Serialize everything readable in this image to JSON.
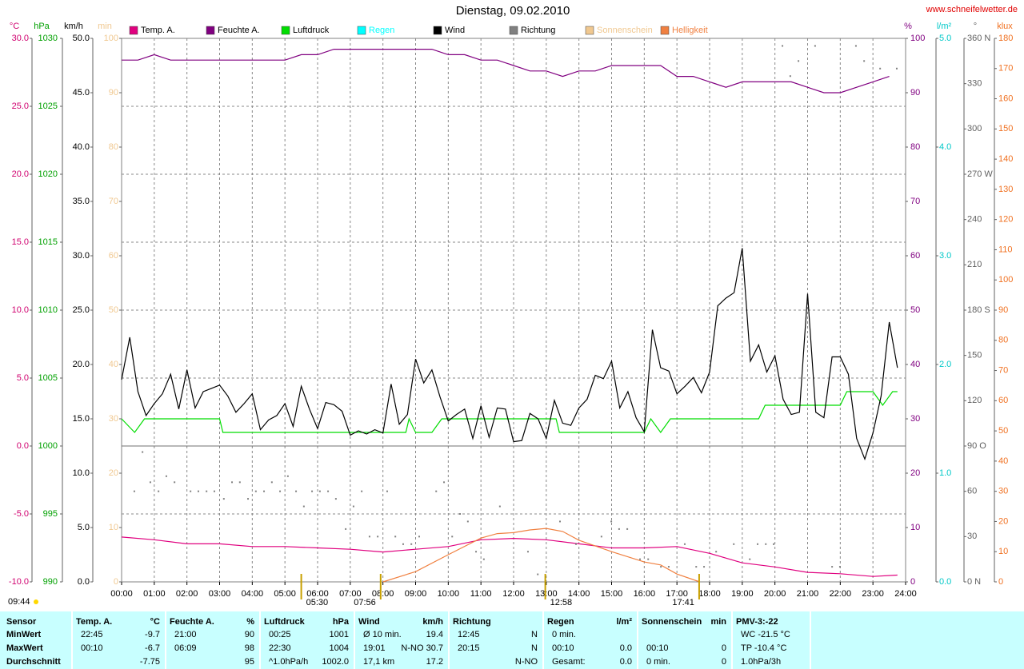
{
  "chart_data": {
    "type": "line",
    "title": "Dienstag, 09.02.2010",
    "source": "www.schneifelwetter.de",
    "xlim": [
      0,
      24
    ],
    "xticks": [
      {
        "value": 0,
        "label": "00:00"
      },
      {
        "value": 1,
        "label": "01:00"
      },
      {
        "value": 2,
        "label": "02:00"
      },
      {
        "value": 3,
        "label": "03:00"
      },
      {
        "value": 4,
        "label": "04:00"
      },
      {
        "value": 5,
        "label": "05:00"
      },
      {
        "value": 6,
        "label": "06:00"
      },
      {
        "value": 7,
        "label": "07:00"
      },
      {
        "value": 8,
        "label": "08:00"
      },
      {
        "value": 9,
        "label": "09:00"
      },
      {
        "value": 10,
        "label": "10:00"
      },
      {
        "value": 11,
        "label": "11:00"
      },
      {
        "value": 12,
        "label": "12:00"
      },
      {
        "value": 13,
        "label": "13:00"
      },
      {
        "value": 14,
        "label": "14:00"
      },
      {
        "value": 15,
        "label": "15:00"
      },
      {
        "value": 16,
        "label": "16:00"
      },
      {
        "value": 17,
        "label": "17:00"
      },
      {
        "value": 18,
        "label": "18:00"
      },
      {
        "value": 19,
        "label": "19:00"
      },
      {
        "value": 20,
        "label": "20:00"
      },
      {
        "value": 21,
        "label": "21:00"
      },
      {
        "value": 22,
        "label": "22:00"
      },
      {
        "value": 23,
        "label": "23:00"
      },
      {
        "value": 24,
        "label": "24:00"
      }
    ],
    "grid": true,
    "moon_label": "09:44",
    "markers": [
      {
        "value": 5.5,
        "label": "05:30"
      },
      {
        "value": 7.93,
        "label": "07:56"
      },
      {
        "value": 12.97,
        "label": "12:58"
      },
      {
        "value": 17.68,
        "label": "17:41"
      }
    ],
    "axes": {
      "temp": {
        "label": "°C",
        "color": "#d0006f",
        "lim": [
          -10,
          30
        ],
        "ticks": [
          {
            "value": 30,
            "label": "30.0"
          },
          {
            "value": 25,
            "label": "25.0"
          },
          {
            "value": 20,
            "label": "20.0"
          },
          {
            "value": 15,
            "label": "15.0"
          },
          {
            "value": 10,
            "label": "10.0"
          },
          {
            "value": 5,
            "label": "5.0"
          },
          {
            "value": 0,
            "label": "0.0"
          },
          {
            "value": -5,
            "label": "-5.0"
          },
          {
            "value": -10,
            "label": "-10.0"
          }
        ]
      },
      "pressure": {
        "label": "hPa",
        "color": "#00a000",
        "lim": [
          990,
          1030
        ],
        "ticks": [
          1030,
          1025,
          1020,
          1015,
          1010,
          1005,
          1000,
          995,
          990
        ]
      },
      "wind": {
        "label": "km/h",
        "color": "#000000",
        "lim": [
          0,
          50
        ],
        "ticks": [
          {
            "value": 50,
            "label": "50.0"
          },
          {
            "value": 45,
            "label": "45.0"
          },
          {
            "value": 40,
            "label": "40.0"
          },
          {
            "value": 35,
            "label": "35.0"
          },
          {
            "value": 30,
            "label": "30.0"
          },
          {
            "value": 25,
            "label": "25.0"
          },
          {
            "value": 20,
            "label": "20.0"
          },
          {
            "value": 15,
            "label": "15.0"
          },
          {
            "value": 10,
            "label": "10.0"
          },
          {
            "value": 5,
            "label": "5.0"
          },
          {
            "value": 0,
            "label": "0.0"
          }
        ]
      },
      "sun": {
        "label": "min",
        "color": "#f0c890",
        "lim": [
          0,
          100
        ],
        "ticks": [
          100,
          90,
          80,
          70,
          60,
          50,
          40,
          30,
          20,
          10,
          0
        ]
      },
      "humidity": {
        "label": "%",
        "color": "#800080",
        "lim": [
          0,
          100
        ],
        "ticks": [
          100,
          90,
          80,
          70,
          60,
          50,
          40,
          30,
          20,
          10,
          0
        ]
      },
      "rain": {
        "label": "l/m²",
        "color": "#00c8c8",
        "lim": [
          0,
          5
        ],
        "ticks": [
          {
            "value": 5,
            "label": "5.0"
          },
          {
            "value": 4,
            "label": "4.0"
          },
          {
            "value": 3,
            "label": "3.0"
          },
          {
            "value": 2,
            "label": "2.0"
          },
          {
            "value": 1,
            "label": "1.0"
          },
          {
            "value": 0,
            "label": "0.0"
          }
        ]
      },
      "direction": {
        "label": "°",
        "color": "#606060",
        "lim": [
          0,
          360
        ],
        "ticks": [
          {
            "value": 360,
            "label": "360 N"
          },
          330,
          300,
          {
            "value": 270,
            "label": "270 W"
          },
          240,
          210,
          {
            "value": 180,
            "label": "180 S"
          },
          150,
          120,
          {
            "value": 90,
            "label": "90 O"
          },
          60,
          30,
          {
            "value": 0,
            "label": "0 N"
          }
        ]
      },
      "light": {
        "label": "klux",
        "color": "#f07020",
        "lim": [
          0,
          180
        ],
        "ticks": [
          180,
          170,
          160,
          150,
          140,
          130,
          120,
          110,
          100,
          90,
          80,
          70,
          60,
          50,
          40,
          30,
          20,
          10,
          0
        ]
      }
    },
    "series": [
      {
        "name": "Temp. A.",
        "color": "#e0007f",
        "axis": "temp",
        "x": [
          0,
          1,
          2,
          3,
          4,
          5,
          6,
          7,
          8,
          9,
          10,
          11,
          12,
          13,
          14,
          15,
          16,
          17,
          18,
          19,
          20,
          21,
          22,
          23,
          23.75
        ],
        "values": [
          -6.7,
          -6.9,
          -7.2,
          -7.2,
          -7.4,
          -7.4,
          -7.5,
          -7.6,
          -7.8,
          -7.6,
          -7.4,
          -6.9,
          -6.8,
          -6.9,
          -7.2,
          -7.5,
          -7.5,
          -7.4,
          -7.9,
          -8.6,
          -8.9,
          -9.3,
          -9.4,
          -9.6,
          -9.5
        ]
      },
      {
        "name": "Feuchte A.",
        "color": "#800080",
        "axis": "humidity",
        "x": [
          0,
          0.5,
          1,
          1.5,
          2,
          2.5,
          3,
          3.5,
          4,
          4.5,
          5,
          5.5,
          6,
          6.5,
          7,
          7.5,
          8,
          8.5,
          9,
          9.5,
          10,
          10.5,
          11,
          11.5,
          12,
          12.5,
          13,
          13.5,
          14,
          14.5,
          15,
          15.5,
          16,
          16.5,
          17,
          17.5,
          18,
          18.5,
          19,
          19.5,
          20,
          20.5,
          21,
          21.5,
          22,
          22.5,
          23,
          23.5
        ],
        "values": [
          96,
          96,
          97,
          96,
          96,
          96,
          96,
          96,
          96,
          96,
          96,
          97,
          97,
          98,
          98,
          98,
          98,
          98,
          98,
          98,
          97,
          97,
          96,
          96,
          95,
          94,
          94,
          93,
          94,
          94,
          95,
          95,
          95,
          95,
          93,
          93,
          92,
          91,
          92,
          92,
          92,
          92,
          91,
          90,
          90,
          91,
          92,
          93
        ]
      },
      {
        "name": "Luftdruck",
        "color": "#00dd00",
        "axis": "pressure",
        "x": [
          0,
          0.4,
          0.7,
          3,
          3.1,
          8.7,
          8.8,
          9,
          9.5,
          9.8,
          13.3,
          13.4,
          16,
          16.2,
          16.5,
          16.8,
          19.5,
          19.7,
          22,
          22.2,
          23,
          23.3,
          23.6,
          23.75
        ],
        "values": [
          1002,
          1001,
          1002,
          1002,
          1001,
          1001,
          1002,
          1001,
          1001,
          1002,
          1002,
          1001,
          1001,
          1002,
          1001,
          1002,
          1002,
          1003,
          1003,
          1004,
          1004,
          1003,
          1004,
          1004
        ]
      },
      {
        "name": "Regen",
        "color": "#00ffff",
        "axis": "rain",
        "x": [],
        "values": []
      },
      {
        "name": "Wind",
        "color": "#000000",
        "axis": "wind",
        "x": [
          0,
          0.25,
          0.5,
          0.75,
          1,
          1.25,
          1.5,
          1.75,
          2,
          2.25,
          2.5,
          2.75,
          3,
          3.25,
          3.5,
          3.75,
          4,
          4.25,
          4.5,
          4.75,
          5,
          5.25,
          5.5,
          5.75,
          6,
          6.25,
          6.5,
          6.75,
          7,
          7.25,
          7.5,
          7.75,
          8,
          8.25,
          8.5,
          8.75,
          9,
          9.25,
          9.5,
          9.75,
          10,
          10.25,
          10.5,
          10.75,
          11,
          11.25,
          11.5,
          11.75,
          12,
          12.25,
          12.5,
          12.75,
          13,
          13.25,
          13.5,
          13.75,
          14,
          14.25,
          14.5,
          14.75,
          15,
          15.25,
          15.5,
          15.75,
          16,
          16.25,
          16.5,
          16.75,
          17,
          17.25,
          17.5,
          17.75,
          18,
          18.25,
          18.5,
          18.75,
          19,
          19.25,
          19.5,
          19.75,
          20,
          20.25,
          20.5,
          20.75,
          21,
          21.25,
          21.5,
          21.75,
          22,
          22.25,
          22.5,
          22.75,
          23,
          23.25,
          23.5,
          23.75
        ],
        "values": [
          18.6,
          22.5,
          17.5,
          15.3,
          16.4,
          17.3,
          19.1,
          15.9,
          19.5,
          16.0,
          17.5,
          17.8,
          18.1,
          17.1,
          15.6,
          16.4,
          17.3,
          14.0,
          14.9,
          15.3,
          16.4,
          14.3,
          18.0,
          15.9,
          14.1,
          16.5,
          16.3,
          15.7,
          13.5,
          13.9,
          13.6,
          14.0,
          13.7,
          18.2,
          14.5,
          15.4,
          20.5,
          18.3,
          19.5,
          17.0,
          14.8,
          15.4,
          15.9,
          13.2,
          16.2,
          13.3,
          16.0,
          15.9,
          12.9,
          13.0,
          15.5,
          15.0,
          13.2,
          16.7,
          14.6,
          14.4,
          16.0,
          16.8,
          19.0,
          18.7,
          20.3,
          16.0,
          17.5,
          15.1,
          13.8,
          23.2,
          19.7,
          19.4,
          17.3,
          18.0,
          18.8,
          17.4,
          19.3,
          25.4,
          26.1,
          26.6,
          30.7,
          20.3,
          21.8,
          19.3,
          20.8,
          16.8,
          15.4,
          15.6,
          26.5,
          15.6,
          15.1,
          20.7,
          20.7,
          19.1,
          13.2,
          11.3,
          13.7,
          17.1,
          23.9,
          19.7
        ]
      },
      {
        "name": "Richtung",
        "color": "#808080",
        "axis": "direction",
        "type": "scatter",
        "x": [
          0.39,
          0.64,
          0.88,
          1.13,
          1.37,
          1.62,
          2.11,
          2.35,
          2.6,
          2.84,
          3.13,
          3.38,
          3.62,
          3.87,
          4.11,
          4.36,
          4.6,
          4.85,
          5.09,
          5.34,
          5.58,
          5.83,
          6.07,
          6.32,
          6.56,
          6.86,
          7.1,
          7.35,
          7.59,
          7.84,
          8.13,
          8.38,
          8.62,
          8.87,
          9.11,
          9.63,
          9.87,
          10.12,
          10.36,
          10.6,
          10.85,
          11.09,
          11.58,
          12.44,
          12.74,
          13.42,
          13.91,
          14.69,
          14.99,
          15.23,
          15.48,
          15.87,
          16.12,
          16.51,
          16.75,
          17.24,
          17.59,
          17.83,
          18.2,
          18.74,
          19.23,
          19.47,
          19.72,
          19.96,
          20.23,
          20.47,
          20.72,
          21.23,
          21.75,
          21.99,
          22.48,
          22.73,
          23.22,
          23.73
        ],
        "values": [
          60,
          86,
          66,
          60,
          70,
          66,
          60,
          60,
          60,
          60,
          55,
          66,
          66,
          55,
          60,
          60,
          66,
          60,
          70,
          60,
          50,
          60,
          60,
          60,
          55,
          35,
          50,
          60,
          30,
          30,
          60,
          30,
          25,
          25,
          30,
          60,
          66,
          30,
          45,
          40,
          20,
          15,
          50,
          20,
          5,
          40,
          25,
          30,
          40,
          35,
          35,
          15,
          15,
          10,
          10,
          25,
          10,
          10,
          20,
          25,
          15,
          25,
          25,
          25,
          355,
          335,
          345,
          355,
          10,
          10,
          355,
          345,
          340,
          340
        ]
      },
      {
        "name": "Sonnenschein",
        "color": "#f0c890",
        "axis": "sun",
        "x": [],
        "values": []
      },
      {
        "name": "Helligkeit",
        "color": "#f08040",
        "axis": "light",
        "x": [
          8,
          9,
          10,
          11,
          11.5,
          12,
          12.5,
          13,
          13.5,
          14,
          15,
          16,
          16.5,
          17,
          17.7
        ],
        "values": [
          0,
          3.4,
          9,
          14.5,
          16,
          16.3,
          17.2,
          17.7,
          16.7,
          13.8,
          10,
          6.6,
          5.6,
          2.6,
          0
        ]
      }
    ]
  },
  "table": {
    "columns": [
      {
        "title": "Sensor",
        "rows": [
          {
            "left": "MinWert"
          },
          {
            "left": "MaxWert"
          },
          {
            "left": "Durchschnitt"
          }
        ]
      },
      {
        "title": "Temp. A.",
        "unit": "°C",
        "rows": [
          {
            "left": "22:45",
            "right": "-9.7"
          },
          {
            "left": "00:10",
            "right": "-6.7"
          },
          {
            "right": "-7.75"
          }
        ]
      },
      {
        "title": "Feuchte A.",
        "unit": "%",
        "rows": [
          {
            "left": "21:00",
            "right": "90"
          },
          {
            "left": "06:09",
            "right": "98"
          },
          {
            "right": "95"
          }
        ]
      },
      {
        "title": "Luftdruck",
        "unit": "hPa",
        "rows": [
          {
            "left": "00:25",
            "right": "1001"
          },
          {
            "left": "22:30",
            "right": "1004"
          },
          {
            "left": "^1.0hPa/h",
            "right": "1002.0"
          }
        ]
      },
      {
        "title": "Wind",
        "unit": "km/h",
        "rows": [
          {
            "left": "Ø 10 min.",
            "right": "19.4"
          },
          {
            "left": "19:01",
            "right": "N-NO 30.7"
          },
          {
            "left": "17,1 km",
            "right": "17.2"
          }
        ]
      },
      {
        "title": "Richtung",
        "rows": [
          {
            "left": "12:45",
            "right": "N"
          },
          {
            "left": "20:15",
            "right": "N"
          },
          {
            "right": "N-NO"
          }
        ]
      },
      {
        "title": "Regen",
        "unit": "l/m²",
        "rows": [
          {
            "left": "0 min."
          },
          {
            "left": "00:10",
            "right": "0.0"
          },
          {
            "left": "Gesamt:",
            "right": "0.0"
          }
        ]
      },
      {
        "title": "Sonnenschein",
        "unit": "min",
        "rows": [
          {},
          {
            "left": "00:10",
            "right": "0"
          },
          {
            "left": "0 min.",
            "right": "0"
          }
        ]
      },
      {
        "title": "PMV-3:-22",
        "rows": [
          {
            "left": "WC -21.5 °C"
          },
          {
            "left": "TP -10.4 °C"
          },
          {
            "left": "1.0hPa/3h"
          }
        ]
      }
    ]
  }
}
